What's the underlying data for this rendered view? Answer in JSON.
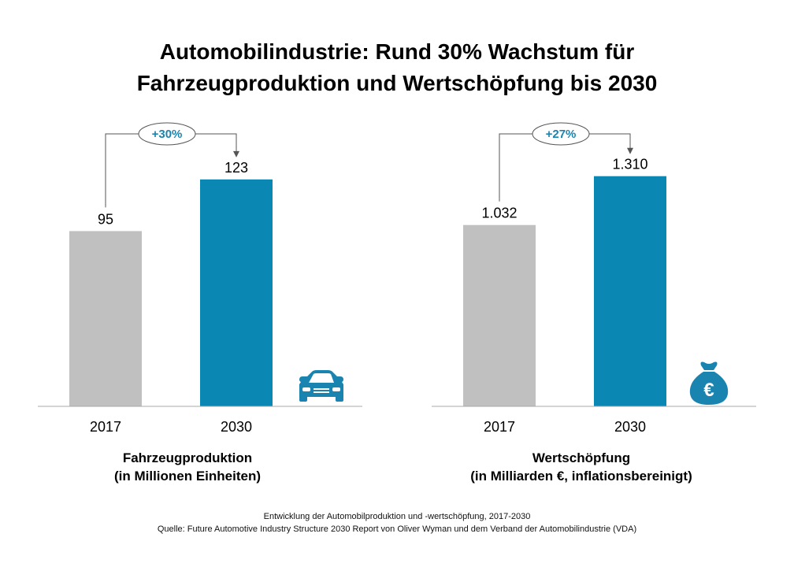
{
  "title": {
    "line1": "Automobilindustrie: Rund 30% Wachstum für",
    "line2": "Fahrzeugproduktion und Wertschöpfung bis 2030"
  },
  "colors": {
    "bar_2017": "#c0c0c0",
    "bar_2030": "#0a87b3",
    "accent": "#1a84b0",
    "axis": "#a8a8a8",
    "connector": "#555555"
  },
  "chart_data": [
    {
      "type": "bar",
      "categories": [
        "2017",
        "2030"
      ],
      "values": [
        95,
        123
      ],
      "value_labels": [
        "95",
        "123"
      ],
      "change_label": "+30%",
      "xlabel_line1": "Fahrzeugproduktion",
      "xlabel_line2": "(in Millionen Einheiten)",
      "icon": "car-icon",
      "ylim": [
        0,
        140
      ]
    },
    {
      "type": "bar",
      "categories": [
        "2017",
        "2030"
      ],
      "values": [
        1032,
        1310
      ],
      "value_labels": [
        "1.032",
        "1.310"
      ],
      "change_label": "+27%",
      "xlabel_line1": "Wertschöpfung",
      "xlabel_line2": "(in Milliarden €, inflationsbereinigt)",
      "icon": "euro-money-bag-icon",
      "ylim": [
        0,
        1470
      ]
    }
  ],
  "footer": {
    "line1": "Entwicklung der Automobilproduktion und -wertschöpfung, 2017-2030",
    "line2": "Quelle: Future Automotive Industry Structure 2030 Report von Oliver Wyman und dem Verband der Automobilindustrie (VDA)"
  }
}
